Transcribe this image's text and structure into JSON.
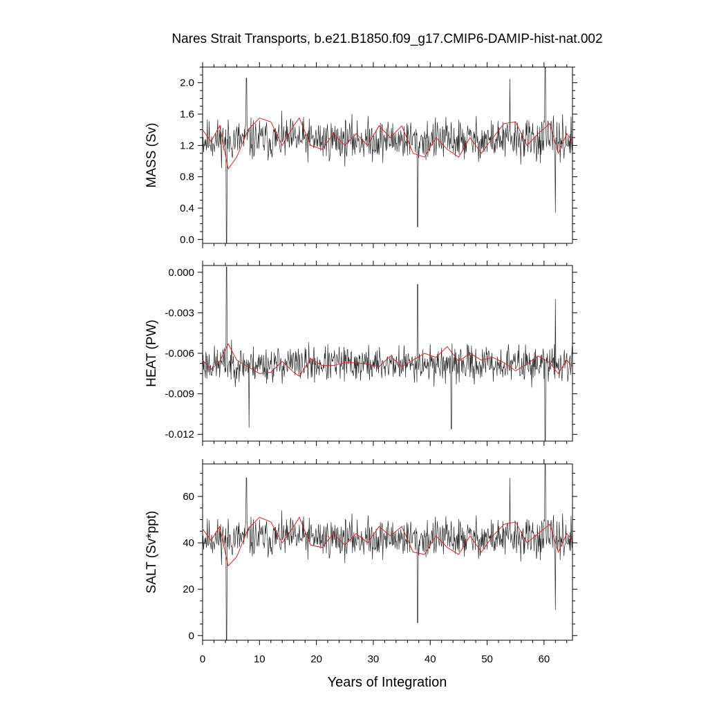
{
  "figure": {
    "title": "Nares Strait Transports, b.e21.B1850.f09_g17.CMIP6-DAMIP-hist-nat.002",
    "xlabel": "Years of Integration"
  },
  "colors": {
    "raw": "#000000",
    "smoothed": "#e0241c",
    "axis": "#000000"
  },
  "chart_data": [
    {
      "type": "line",
      "ylabel": "MASS (Sv)",
      "xlim": [
        0,
        65
      ],
      "ylim": [
        -0.05,
        2.2
      ],
      "xticks": [
        0,
        10,
        20,
        30,
        40,
        50,
        60
      ],
      "yticks": [
        0.0,
        0.4,
        0.8,
        1.2,
        1.6,
        2.0
      ],
      "ytick_labels": [
        "0.0",
        "0.4",
        "0.8",
        "1.2",
        "1.6",
        "2.0"
      ],
      "series": [
        {
          "role": "monthly",
          "base": 1.27,
          "amp": 0.28,
          "seed": 11,
          "extremes": [
            [
              4.2,
              -0.05
            ],
            [
              7.7,
              2.06
            ],
            [
              37.8,
              0.16
            ],
            [
              60.2,
              2.2
            ],
            [
              62.0,
              0.34
            ],
            [
              54.0,
              2.05
            ]
          ]
        },
        {
          "role": "running-mean",
          "x": [
            0,
            1.5,
            3,
            4.5,
            6,
            8,
            10,
            12,
            14,
            16,
            17,
            19,
            21,
            23,
            25,
            27,
            29,
            31,
            33,
            35,
            37,
            39,
            41,
            43,
            45,
            47,
            49,
            51,
            53,
            55,
            57,
            59,
            61,
            62.5,
            64,
            65
          ],
          "y": [
            1.4,
            1.25,
            1.45,
            0.9,
            1.05,
            1.4,
            1.55,
            1.5,
            1.2,
            1.45,
            1.55,
            1.2,
            1.15,
            1.35,
            1.2,
            1.35,
            1.2,
            1.45,
            1.3,
            1.45,
            1.1,
            1.05,
            1.3,
            1.15,
            1.05,
            1.3,
            1.1,
            1.3,
            1.48,
            1.5,
            1.2,
            1.35,
            1.48,
            1.1,
            1.35,
            1.25
          ]
        }
      ]
    },
    {
      "type": "line",
      "ylabel": "HEAT (PW)",
      "xlim": [
        0,
        65
      ],
      "ylim": [
        -0.0125,
        0.0005
      ],
      "xticks": [
        0,
        10,
        20,
        30,
        40,
        50,
        60
      ],
      "yticks": [
        0.0,
        -0.003,
        -0.006,
        -0.009,
        -0.012
      ],
      "ytick_labels": [
        "0.000",
        "-0.003",
        "-0.006",
        "-0.009",
        "-0.012"
      ],
      "series": [
        {
          "role": "monthly",
          "base": -0.0068,
          "amp": 0.0014,
          "seed": 23,
          "extremes": [
            [
              4.2,
              0.0004
            ],
            [
              37.8,
              -0.0009
            ],
            [
              8.2,
              -0.0115
            ],
            [
              60.2,
              -0.0125
            ],
            [
              62.0,
              -0.002
            ],
            [
              43.7,
              -0.0116
            ]
          ]
        },
        {
          "role": "running-mean",
          "x": [
            0,
            1.5,
            3,
            4.5,
            6,
            8,
            10,
            12,
            14,
            16,
            17,
            19,
            21,
            23,
            25,
            27,
            29,
            31,
            33,
            35,
            37,
            39,
            41,
            43,
            45,
            47,
            49,
            51,
            53,
            55,
            57,
            59,
            61,
            62.5,
            64,
            65
          ],
          "y": [
            -0.0065,
            -0.0072,
            -0.0066,
            -0.0053,
            -0.0065,
            -0.007,
            -0.0075,
            -0.0074,
            -0.0066,
            -0.0074,
            -0.0077,
            -0.0064,
            -0.0069,
            -0.0069,
            -0.0067,
            -0.0067,
            -0.0068,
            -0.007,
            -0.0062,
            -0.007,
            -0.0065,
            -0.006,
            -0.0063,
            -0.0055,
            -0.0066,
            -0.006,
            -0.0065,
            -0.0063,
            -0.0067,
            -0.0073,
            -0.0068,
            -0.0062,
            -0.0067,
            -0.0075,
            -0.0065,
            -0.007
          ]
        }
      ]
    },
    {
      "type": "line",
      "ylabel": "SALT (Sv*ppt)",
      "xlim": [
        0,
        65
      ],
      "ylim": [
        -2,
        74
      ],
      "xticks": [
        0,
        10,
        20,
        30,
        40,
        50,
        60
      ],
      "yticks": [
        0,
        20,
        40,
        60
      ],
      "ytick_labels": [
        "0",
        "20",
        "40",
        "60"
      ],
      "series": [
        {
          "role": "monthly",
          "base": 42,
          "amp": 9,
          "seed": 11,
          "extremes": [
            [
              4.2,
              -2
            ],
            [
              7.7,
              68
            ],
            [
              37.8,
              5.5
            ],
            [
              60.2,
              74
            ],
            [
              62.0,
              11
            ],
            [
              54.0,
              68
            ]
          ]
        },
        {
          "role": "running-mean",
          "x": [
            0,
            1.5,
            3,
            4.5,
            6,
            8,
            10,
            12,
            14,
            16,
            17,
            19,
            21,
            23,
            25,
            27,
            29,
            31,
            33,
            35,
            37,
            39,
            41,
            43,
            45,
            47,
            49,
            51,
            53,
            55,
            57,
            59,
            61,
            62.5,
            64,
            65
          ],
          "y": [
            46,
            41,
            47,
            30,
            34,
            46,
            51,
            49,
            40,
            47,
            51,
            39,
            38,
            44,
            39,
            44,
            40,
            47,
            43,
            47,
            36,
            35,
            43,
            38,
            35,
            43,
            36,
            43,
            48,
            49,
            40,
            44,
            48,
            36,
            44,
            41
          ]
        }
      ]
    }
  ]
}
